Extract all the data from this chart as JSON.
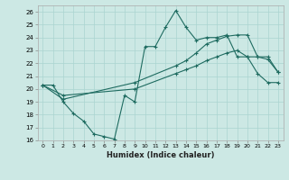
{
  "xlabel": "Humidex (Indice chaleur)",
  "bg_color": "#cce8e4",
  "grid_color": "#aad4d0",
  "line_color": "#1e6b60",
  "xlim": [
    -0.5,
    23.5
  ],
  "ylim": [
    16,
    26.5
  ],
  "xticks": [
    0,
    1,
    2,
    3,
    4,
    5,
    6,
    7,
    8,
    9,
    10,
    11,
    12,
    13,
    14,
    15,
    16,
    17,
    18,
    19,
    20,
    21,
    22,
    23
  ],
  "yticks": [
    16,
    17,
    18,
    19,
    20,
    21,
    22,
    23,
    24,
    25,
    26
  ],
  "line1_x": [
    0,
    1,
    2,
    3,
    4,
    5,
    6,
    7,
    8,
    9,
    10,
    11,
    12,
    13,
    14,
    15,
    16,
    17,
    18,
    19,
    20,
    21,
    22,
    23
  ],
  "line1_y": [
    20.3,
    20.3,
    19.0,
    18.1,
    17.5,
    16.5,
    16.3,
    16.1,
    19.5,
    19.0,
    23.3,
    23.3,
    24.8,
    26.1,
    24.8,
    23.8,
    24.0,
    24.0,
    24.2,
    22.5,
    22.5,
    21.2,
    20.5,
    20.5
  ],
  "line2_x": [
    0,
    2,
    9,
    13,
    14,
    15,
    16,
    17,
    18,
    19,
    20,
    21,
    22,
    23
  ],
  "line2_y": [
    20.3,
    19.2,
    20.5,
    21.8,
    22.2,
    22.8,
    23.5,
    23.8,
    24.1,
    24.2,
    24.2,
    22.5,
    22.5,
    21.3
  ],
  "line3_x": [
    0,
    2,
    9,
    13,
    14,
    15,
    16,
    17,
    18,
    19,
    20,
    21,
    22,
    23
  ],
  "line3_y": [
    20.3,
    19.5,
    20.0,
    21.2,
    21.5,
    21.8,
    22.2,
    22.5,
    22.8,
    23.0,
    22.5,
    22.5,
    22.3,
    21.3
  ]
}
